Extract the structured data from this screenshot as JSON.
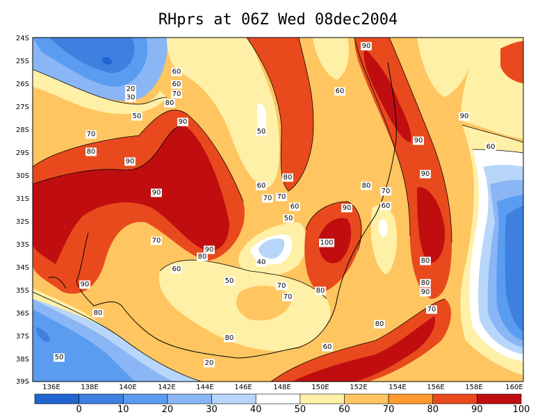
{
  "title": "RHprs at 06Z Wed 08dec2004",
  "axes": {
    "lat_labels": [
      "24S",
      "25S",
      "26S",
      "27S",
      "28S",
      "29S",
      "30S",
      "31S",
      "32S",
      "33S",
      "34S",
      "35S",
      "36S",
      "37S",
      "38S",
      "39S"
    ],
    "lon_labels": [
      "136E",
      "138E",
      "140E",
      "142E",
      "144E",
      "146E",
      "148E",
      "150E",
      "152E",
      "154E",
      "156E",
      "158E",
      "160E"
    ]
  },
  "colorbar": {
    "labels": [
      "0",
      "10",
      "20",
      "30",
      "40",
      "50",
      "60",
      "70",
      "80",
      "90",
      "100"
    ],
    "colors": [
      "#2166d0",
      "#3d80e0",
      "#5a9cf0",
      "#8ab6f5",
      "#b8d6fa",
      "#ffffff",
      "#fff0a8",
      "#ffc560",
      "#ff9a2e",
      "#e84a1e",
      "#c00e10"
    ]
  },
  "contour_labels": [
    {
      "text": "20"
    },
    {
      "text": "30"
    },
    {
      "text": "50"
    },
    {
      "text": "60"
    },
    {
      "text": "60"
    },
    {
      "text": "70"
    },
    {
      "text": "80"
    },
    {
      "text": "90"
    },
    {
      "text": "70"
    },
    {
      "text": "80"
    },
    {
      "text": "90"
    },
    {
      "text": "90"
    },
    {
      "text": "50"
    },
    {
      "text": "60"
    },
    {
      "text": "70"
    },
    {
      "text": "70"
    },
    {
      "text": "80"
    },
    {
      "text": "60"
    },
    {
      "text": "50"
    },
    {
      "text": "40"
    },
    {
      "text": "50"
    },
    {
      "text": "90"
    },
    {
      "text": "80"
    },
    {
      "text": "70"
    },
    {
      "text": "60"
    },
    {
      "text": "90"
    },
    {
      "text": "80"
    },
    {
      "text": "70"
    },
    {
      "text": "70"
    },
    {
      "text": "80"
    },
    {
      "text": "100"
    },
    {
      "text": "90"
    },
    {
      "text": "80"
    },
    {
      "text": "70"
    },
    {
      "text": "60"
    },
    {
      "text": "90"
    },
    {
      "text": "60"
    },
    {
      "text": "90"
    },
    {
      "text": "90"
    },
    {
      "text": "80"
    },
    {
      "text": "80"
    },
    {
      "text": "90"
    },
    {
      "text": "70"
    },
    {
      "text": "80"
    },
    {
      "text": "60"
    },
    {
      "text": "80"
    },
    {
      "text": "20"
    },
    {
      "text": "50"
    },
    {
      "text": "60"
    },
    {
      "text": "90"
    }
  ]
}
